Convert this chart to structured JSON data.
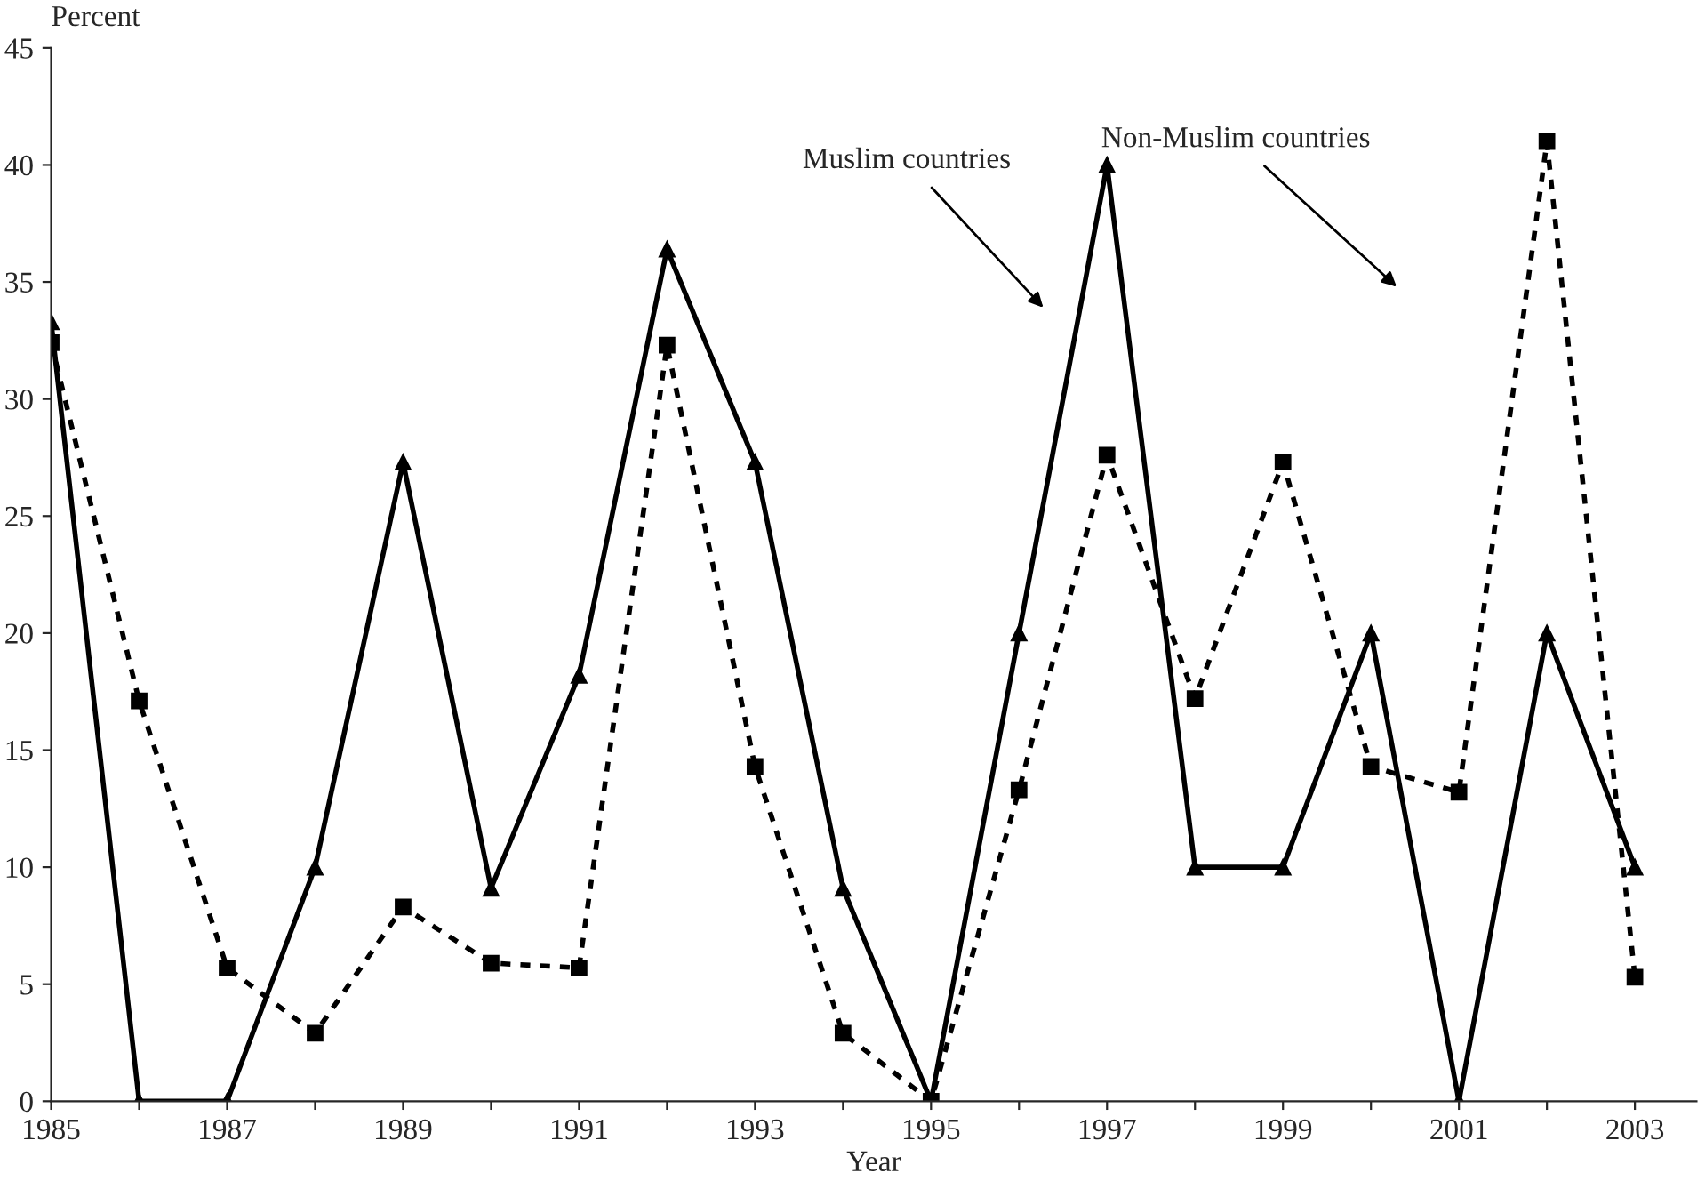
{
  "chart_data": {
    "type": "line",
    "xlabel": "Year",
    "ylabel": "Percent",
    "x": [
      1985,
      1986,
      1987,
      1988,
      1989,
      1990,
      1991,
      1992,
      1993,
      1994,
      1995,
      1996,
      1997,
      1998,
      1999,
      2000,
      2001,
      2002,
      2003
    ],
    "series": [
      {
        "color": "#000000",
        "marker": "triangle",
        "line_style": "solid",
        "values": [
          33.3,
          0,
          0,
          10,
          27.3,
          9.1,
          18.2,
          36.4,
          27.3,
          9.1,
          0,
          20,
          40,
          10,
          10,
          20,
          0,
          20,
          10
        ]
      },
      {
        "color": "#000000",
        "marker": "square",
        "line_style": "dotted",
        "values": [
          32.4,
          17.1,
          5.7,
          2.9,
          8.3,
          5.9,
          5.7,
          32.3,
          14.3,
          2.9,
          0,
          13.3,
          27.6,
          17.2,
          27.3,
          14.3,
          13.2,
          41.0,
          5.3
        ]
      }
    ],
    "annotations": [
      "Muslim countries",
      "Non-Muslim countries"
    ],
    "xlim": [
      1985,
      2003.7
    ],
    "ylim": [
      0,
      45
    ],
    "xticks": [
      1985,
      {
        "value": 1986,
        "label": null
      },
      1987,
      {
        "value": 1988,
        "label": null
      },
      1989,
      {
        "value": 1990,
        "label": null
      },
      1991,
      {
        "value": 1992,
        "label": null
      },
      1993,
      {
        "value": 1994,
        "label": null
      },
      1995,
      {
        "value": 1996,
        "label": null
      },
      1997,
      {
        "value": 1998,
        "label": null
      },
      1999,
      {
        "value": 2000,
        "label": null
      },
      2001,
      {
        "value": 2002,
        "label": null
      },
      2003
    ],
    "yticks": [
      0,
      5,
      10,
      15,
      20,
      25,
      30,
      35,
      40,
      45
    ],
    "grid": false,
    "legend": false
  }
}
